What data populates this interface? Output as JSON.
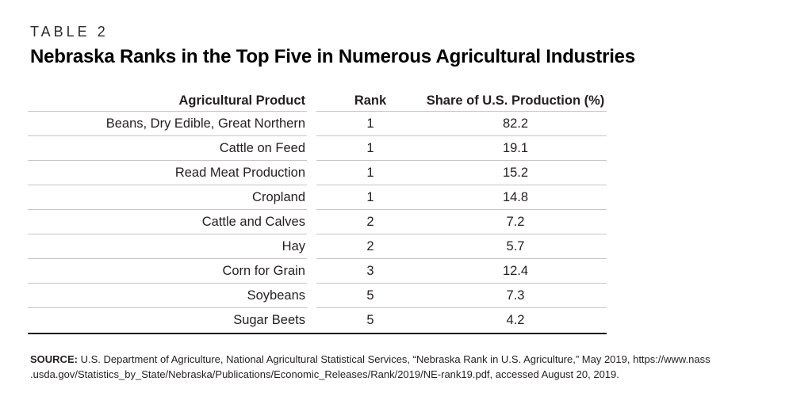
{
  "label": "TABLE 2",
  "title": "Nebraska Ranks in the Top Five in Numerous Agricultural Industries",
  "table": {
    "columns": [
      "Agricultural Product",
      "Rank",
      "Share of U.S. Production (%)"
    ],
    "rows": [
      {
        "product": "Beans, Dry Edible, Great Northern",
        "rank": "1",
        "share": "82.2"
      },
      {
        "product": "Cattle on Feed",
        "rank": "1",
        "share": "19.1"
      },
      {
        "product": "Read Meat Production",
        "rank": "1",
        "share": "15.2"
      },
      {
        "product": "Cropland",
        "rank": "1",
        "share": "14.8"
      },
      {
        "product": "Cattle and Calves",
        "rank": "2",
        "share": "7.2"
      },
      {
        "product": "Hay",
        "rank": "2",
        "share": "5.7"
      },
      {
        "product": "Corn for Grain",
        "rank": "3",
        "share": "12.4"
      },
      {
        "product": "Soybeans",
        "rank": "5",
        "share": "7.3"
      },
      {
        "product": "Sugar Beets",
        "rank": "5",
        "share": "4.2"
      }
    ]
  },
  "source": {
    "label": "SOURCE:",
    "line1": "U.S. Department of Agriculture, National Agricultural Statistical Services, “Nebraska Rank in U.S. Agriculture,” May 2019, https://www.nass",
    "line2": ".usda.gov/Statistics_by_State/Nebraska/Publications/Economic_Releases/Rank/2019/NE-rank19.pdf, accessed August 20, 2019."
  },
  "colors": {
    "text": "#231f20",
    "row_line": "#c6c6c6",
    "bottom_rule": "#111111"
  }
}
